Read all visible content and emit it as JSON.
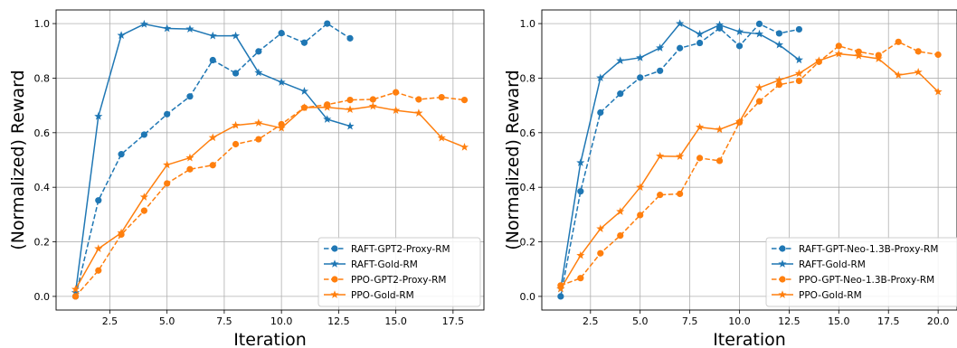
{
  "chart_data": [
    {
      "type": "line",
      "xlabel": "Iteration",
      "ylabel": "(Normalized) Reward",
      "xlim": [
        0.15,
        18.85
      ],
      "ylim": [
        -0.05,
        1.05
      ],
      "xticks": [
        "2.5",
        "5.0",
        "7.5",
        "10.0",
        "12.5",
        "15.0",
        "17.5"
      ],
      "xtick_values": [
        2.5,
        5.0,
        7.5,
        10.0,
        12.5,
        15.0,
        17.5
      ],
      "yticks": [
        "0.0",
        "0.2",
        "0.4",
        "0.6",
        "0.8",
        "1.0"
      ],
      "ytick_values": [
        0.0,
        0.2,
        0.4,
        0.6,
        0.8,
        1.0
      ],
      "grid": true,
      "legend_position": "bottom-right",
      "series": [
        {
          "name": "RAFT-GPT2-Proxy-RM",
          "color": "#1f77b4",
          "dash": true,
          "marker": "circle",
          "x": [
            1,
            2,
            3,
            4,
            5,
            6,
            7,
            8,
            9,
            10,
            11,
            12,
            13
          ],
          "y": [
            0.0,
            0.352,
            0.521,
            0.593,
            0.668,
            0.733,
            0.866,
            0.818,
            0.898,
            0.965,
            0.93,
            1.0,
            0.946
          ]
        },
        {
          "name": "RAFT-Gold-RM",
          "color": "#1f77b4",
          "dash": false,
          "marker": "star",
          "x": [
            1,
            2,
            3,
            4,
            5,
            6,
            7,
            8,
            9,
            10,
            11,
            12,
            13
          ],
          "y": [
            0.014,
            0.66,
            0.957,
            0.998,
            0.982,
            0.98,
            0.955,
            0.955,
            0.82,
            0.785,
            0.752,
            0.649,
            0.624
          ]
        },
        {
          "name": "PPO-GPT2-Proxy-RM",
          "color": "#ff7f0e",
          "dash": true,
          "marker": "circle",
          "x": [
            1,
            2,
            3,
            4,
            5,
            6,
            7,
            8,
            9,
            10,
            11,
            12,
            13,
            14,
            15,
            16,
            17,
            18
          ],
          "y": [
            0.0,
            0.095,
            0.227,
            0.314,
            0.414,
            0.466,
            0.481,
            0.558,
            0.576,
            0.631,
            0.692,
            0.703,
            0.72,
            0.722,
            0.748,
            0.722,
            0.73,
            0.72
          ]
        },
        {
          "name": "PPO-Gold-RM",
          "color": "#ff7f0e",
          "dash": false,
          "marker": "star",
          "x": [
            1,
            2,
            3,
            4,
            5,
            6,
            7,
            8,
            9,
            10,
            11,
            12,
            13,
            14,
            15,
            16,
            17,
            18
          ],
          "y": [
            0.026,
            0.175,
            0.233,
            0.364,
            0.482,
            0.508,
            0.582,
            0.627,
            0.636,
            0.617,
            0.692,
            0.693,
            0.685,
            0.697,
            0.682,
            0.672,
            0.581,
            0.547
          ]
        }
      ]
    },
    {
      "type": "line",
      "xlabel": "Iteration",
      "ylabel": "(Normalized) Reward",
      "xlim": [
        0.05,
        20.95
      ],
      "ylim": [
        -0.05,
        1.05
      ],
      "xticks": [
        "2.5",
        "5.0",
        "7.5",
        "10.0",
        "12.5",
        "15.0",
        "17.5",
        "20.0"
      ],
      "xtick_values": [
        2.5,
        5.0,
        7.5,
        10.0,
        12.5,
        15.0,
        17.5,
        20.0
      ],
      "yticks": [
        "0.0",
        "0.2",
        "0.4",
        "0.6",
        "0.8",
        "1.0"
      ],
      "ytick_values": [
        0.0,
        0.2,
        0.4,
        0.6,
        0.8,
        1.0
      ],
      "grid": true,
      "legend_position": "bottom-right",
      "series": [
        {
          "name": "RAFT-GPT-Neo-1.3B-Proxy-RM",
          "color": "#1f77b4",
          "dash": true,
          "marker": "circle",
          "x": [
            1,
            2,
            3,
            4,
            5,
            6,
            7,
            8,
            9,
            10,
            11,
            12,
            13
          ],
          "y": [
            0.0,
            0.385,
            0.674,
            0.743,
            0.802,
            0.827,
            0.91,
            0.929,
            0.983,
            0.918,
            0.999,
            0.964,
            0.979
          ]
        },
        {
          "name": "RAFT-Gold-RM",
          "color": "#1f77b4",
          "dash": false,
          "marker": "star",
          "x": [
            1,
            2,
            3,
            4,
            5,
            6,
            7,
            8,
            9,
            10,
            11,
            12,
            13
          ],
          "y": [
            0.028,
            0.49,
            0.801,
            0.864,
            0.875,
            0.911,
            1.0,
            0.961,
            0.995,
            0.97,
            0.962,
            0.922,
            0.867
          ]
        },
        {
          "name": "PPO-GPT-Neo-1.3B-Proxy-RM",
          "color": "#ff7f0e",
          "dash": true,
          "marker": "circle",
          "x": [
            1,
            2,
            3,
            4,
            5,
            6,
            7,
            8,
            9,
            10,
            11,
            12,
            13,
            14,
            15,
            16,
            17,
            18,
            19,
            20
          ],
          "y": [
            0.04,
            0.067,
            0.158,
            0.223,
            0.298,
            0.372,
            0.376,
            0.507,
            0.497,
            0.638,
            0.715,
            0.776,
            0.79,
            0.86,
            0.918,
            0.897,
            0.884,
            0.933,
            0.898,
            0.886
          ]
        },
        {
          "name": "PPO-Gold-RM",
          "color": "#ff7f0e",
          "dash": false,
          "marker": "star",
          "x": [
            1,
            2,
            3,
            4,
            5,
            6,
            7,
            8,
            9,
            10,
            11,
            12,
            13,
            14,
            15,
            16,
            17,
            18,
            19,
            20
          ],
          "y": [
            0.028,
            0.15,
            0.248,
            0.311,
            0.4,
            0.514,
            0.513,
            0.62,
            0.612,
            0.64,
            0.765,
            0.793,
            0.817,
            0.864,
            0.889,
            0.882,
            0.871,
            0.811,
            0.822,
            0.75
          ]
        }
      ]
    }
  ]
}
